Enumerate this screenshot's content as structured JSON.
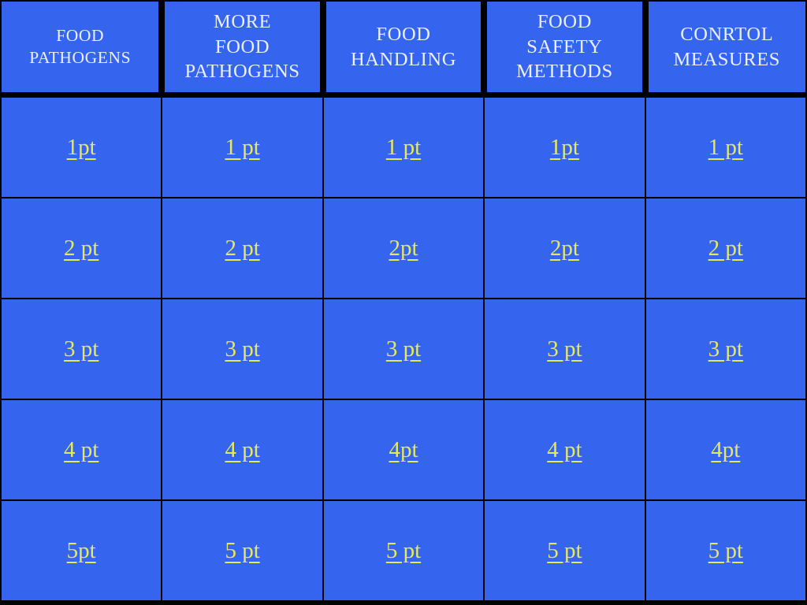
{
  "board": {
    "colors": {
      "cell_background": "#3565ee",
      "grid_border": "#000000",
      "header_text": "#ebeff9",
      "link_text": "#e8e95a"
    },
    "columns": [
      {
        "header": "FOOD\nPATHOGENS",
        "cells": [
          "1pt",
          "2 pt",
          "3 pt",
          "4 pt",
          "5pt"
        ]
      },
      {
        "header": "MORE\nFOOD\nPATHOGENS",
        "cells": [
          "1 pt",
          "2 pt",
          "3 pt",
          "4 pt",
          "5 pt"
        ]
      },
      {
        "header": "FOOD\nHANDLING",
        "cells": [
          "1 pt",
          "2pt",
          "3 pt",
          "4pt",
          "5 pt"
        ]
      },
      {
        "header": "FOOD\nSAFETY\nMETHODS",
        "cells": [
          "1pt",
          "2pt",
          "3 pt",
          "4 pt",
          "5 pt"
        ]
      },
      {
        "header": "CONRTOL\nMEASURES",
        "cells": [
          "1 pt",
          "2 pt",
          "3 pt",
          "4pt",
          "5 pt"
        ]
      }
    ]
  }
}
